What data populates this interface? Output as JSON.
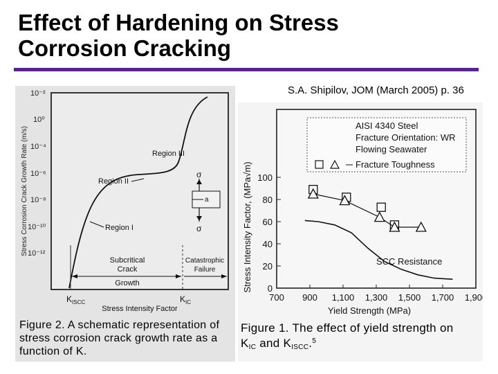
{
  "slide": {
    "title_line1": "Effect of Hardening on Stress",
    "title_line2": "Corrosion Cracking",
    "citation": "S.A. Shipilov, JOM (March 2005) p. 36",
    "accent_color": "#5a1f9a"
  },
  "figure2": {
    "ylabel": "Stress Corrosion Crack Growth Rate (m/s)",
    "yticks": [
      "10⁻²",
      "10⁰",
      "10⁻⁴",
      "10⁻⁶",
      "10⁻⁸",
      "10⁻¹⁰",
      "10⁻¹²"
    ],
    "region3": "Region III",
    "region2": "Region II",
    "region1": "Region I",
    "sigma": "σ",
    "crack": "a",
    "subcritical_l1": "Subcritical",
    "subcritical_l2": "Crack",
    "subcritical_l3": "Growth",
    "catastrophic_l1": "Catastrophic",
    "catastrophic_l2": "Failure",
    "kiscc": "K",
    "kiscc_sub": "ISCC",
    "kic": "K",
    "kic_sub": "IC",
    "xlabel": "Stress Intensity Factor",
    "caption_l1": "Figure 2. A schematic representation of",
    "caption_l2": "stress corrosion crack growth rate as a",
    "caption_l3": "function of K."
  },
  "figure1": {
    "legend": [
      "AISI 4340 Steel",
      "Fracture Orientation: WR",
      "Flowing Seawater",
      "Fracture Toughness"
    ],
    "ylabel": "Stress Intensity Factor, (MPa√m)",
    "xlabel": "Yield Strength (MPa)",
    "yticks": [
      "0",
      "20",
      "40",
      "60",
      "80",
      "100"
    ],
    "xticks": [
      "700",
      "900",
      "1,100",
      "1,300",
      "1,500",
      "1,700",
      "1,900"
    ],
    "scc_label": "SCC Resistance",
    "caption_l1": "Figure 1. The effect of yield strength on",
    "caption_l2_pre": "K",
    "caption_l2_sub1": "IC",
    "caption_l2_mid": " and K",
    "caption_l2_sub2": "ISCC",
    "caption_l2_post": ".",
    "caption_l2_sup": "5"
  },
  "chart_data": {
    "type": "scatter",
    "xlabel": "Yield Strength (MPa)",
    "ylabel": "Stress Intensity Factor, (MPa√m)",
    "xlim": [
      700,
      1900
    ],
    "ylim": [
      0,
      100
    ],
    "series": [
      {
        "name": "Fracture Toughness",
        "marker": "square",
        "x": [
          920,
          1120,
          1330,
          1410
        ],
        "y": [
          89,
          82,
          73,
          57
        ]
      },
      {
        "name": "Fracture Toughness",
        "marker": "triangle",
        "x": [
          920,
          1110,
          1320,
          1410,
          1570
        ],
        "y": [
          85,
          79,
          64,
          55,
          55
        ]
      },
      {
        "name": "SCC Resistance",
        "marker": "line",
        "x": [
          870,
          950,
          1050,
          1150,
          1250,
          1350,
          1450,
          1550,
          1650,
          1760
        ],
        "y": [
          61,
          60,
          57,
          50,
          36,
          24,
          17,
          12,
          9,
          8
        ]
      }
    ]
  }
}
